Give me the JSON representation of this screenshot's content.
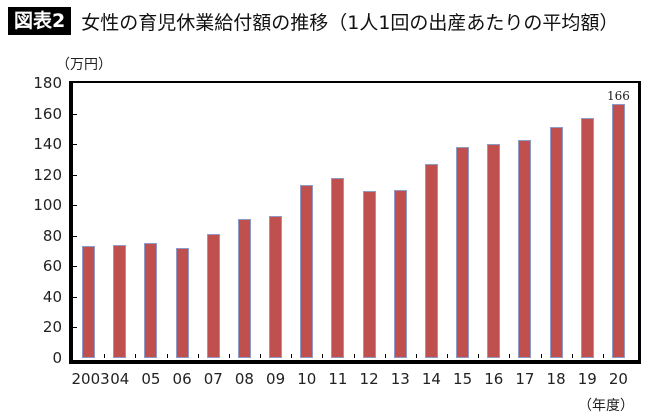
{
  "header": {
    "badge": "図表2",
    "title": "女性の育児休業給付額の推移（1人1回の出産あたりの平均額）"
  },
  "axes": {
    "y_unit": "（万円）",
    "x_unit": "（年度）"
  },
  "chart_data": {
    "type": "bar",
    "title": "女性の育児休業給付額の推移（1人1回の出産あたりの平均額）",
    "xlabel": "（年度）",
    "ylabel": "（万円）",
    "ylim": [
      0,
      180
    ],
    "yticks": [
      0,
      20,
      40,
      60,
      80,
      100,
      120,
      140,
      160,
      180
    ],
    "grid": false,
    "legend": null,
    "categories": [
      "2003",
      "04",
      "05",
      "06",
      "07",
      "08",
      "09",
      "10",
      "11",
      "12",
      "13",
      "14",
      "15",
      "16",
      "17",
      "18",
      "19",
      "20"
    ],
    "values": [
      73,
      74,
      75,
      72,
      81,
      91,
      93,
      113,
      118,
      109,
      110,
      127,
      138,
      140,
      143,
      151,
      157,
      166
    ],
    "annotations": [
      {
        "category": "20",
        "text": "166"
      }
    ],
    "bar_color": "#c0504d"
  }
}
